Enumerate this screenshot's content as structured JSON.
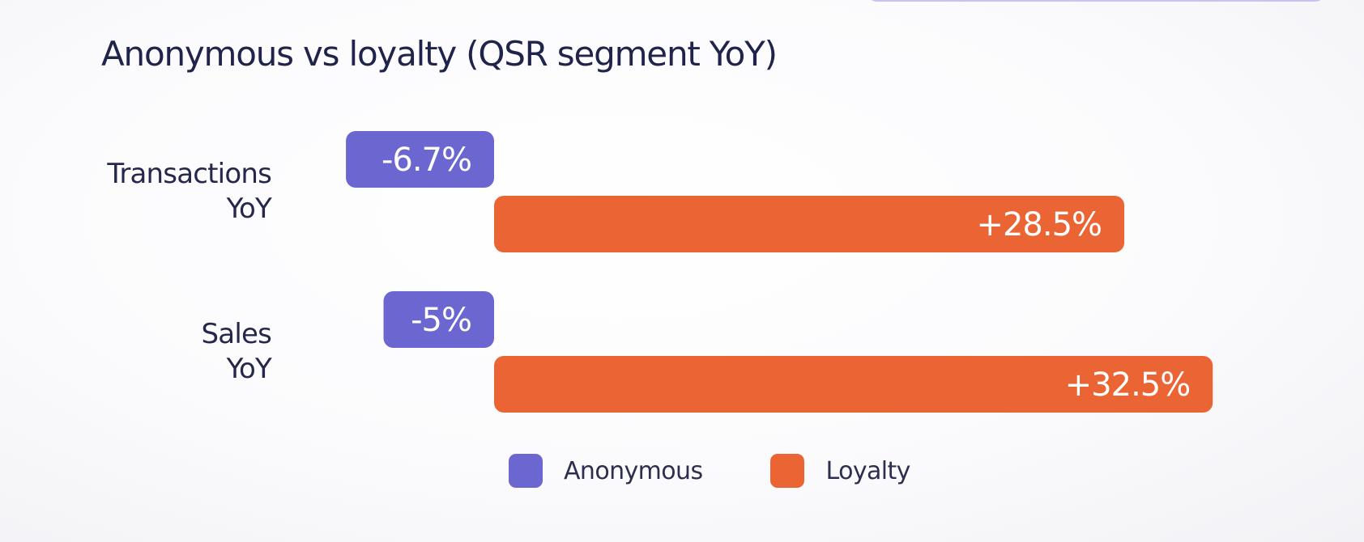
{
  "chart_data": {
    "type": "bar",
    "orientation": "horizontal",
    "title": "Anonymous vs loyalty (QSR segment YoY)",
    "categories": [
      "Transactions YoY",
      "Sales YoY"
    ],
    "category_lines": [
      [
        "Transactions",
        "YoY"
      ],
      [
        "Sales",
        "YoY"
      ]
    ],
    "series": [
      {
        "name": "Anonymous",
        "color": "#6c66d0",
        "values": [
          -6.7,
          -5
        ],
        "labels": [
          "-6.7%",
          "-5%"
        ]
      },
      {
        "name": "Loyalty",
        "color": "#eb6434",
        "values": [
          28.5,
          32.5
        ],
        "labels": [
          "+28.5%",
          "+32.5%"
        ]
      }
    ],
    "xlim": [
      -6.7,
      32.5
    ],
    "legend_position": "bottom",
    "grid": false
  }
}
